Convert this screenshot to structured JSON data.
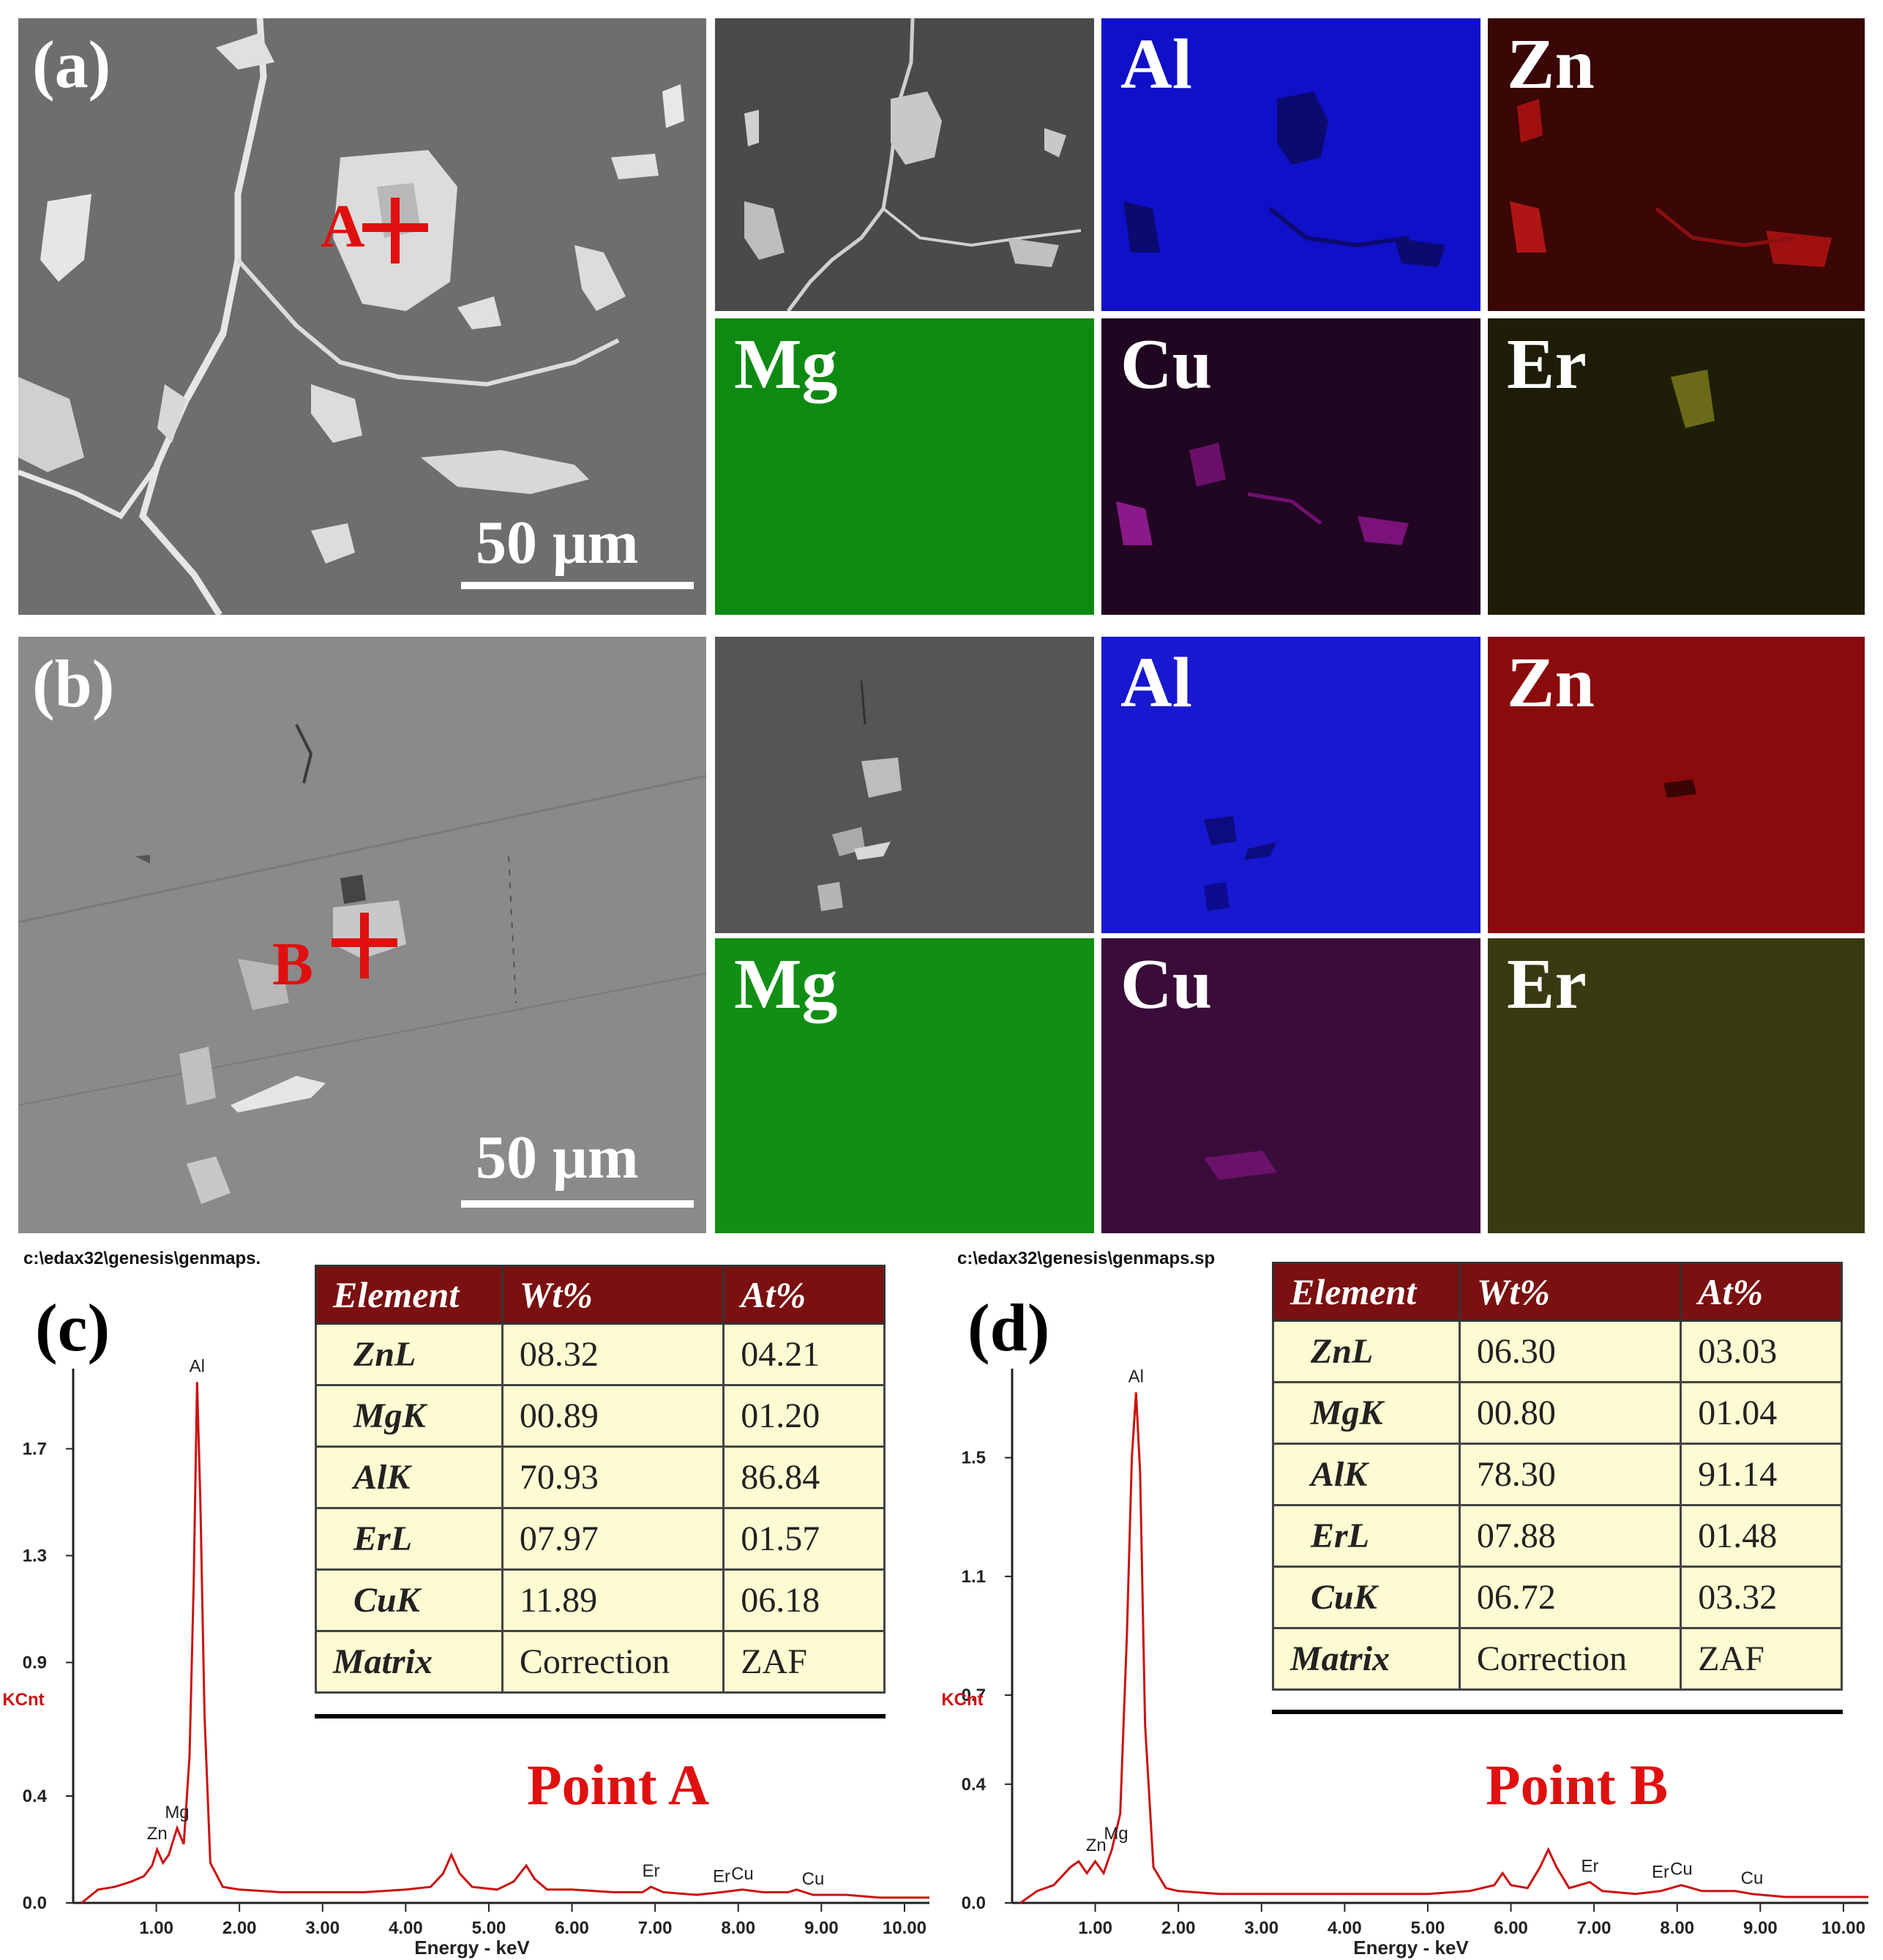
{
  "panels": {
    "a": {
      "label": "(a)",
      "scale_bar": "50 μm",
      "marker": "A",
      "maps": [
        "Al",
        "Zn",
        "Mg",
        "Cu",
        "Er"
      ]
    },
    "b": {
      "label": "(b)",
      "scale_bar": "50 μm",
      "marker": "B",
      "maps": [
        "Al",
        "Zn",
        "Mg",
        "Cu",
        "Er"
      ]
    },
    "c": {
      "label": "(c)",
      "path": "c:\\edax32\\genesis\\genmaps.",
      "point_title": "Point A",
      "table": {
        "headers": [
          "Element",
          "Wt%",
          "At%"
        ],
        "rows": [
          [
            "ZnL",
            "08.32",
            "04.21"
          ],
          [
            "MgK",
            "00.89",
            "01.20"
          ],
          [
            "AlK",
            "70.93",
            "86.84"
          ],
          [
            "ErL",
            "07.97",
            "01.57"
          ],
          [
            "CuK",
            "11.89",
            "06.18"
          ],
          [
            "Matrix",
            "Correction",
            "ZAF"
          ]
        ]
      }
    },
    "d": {
      "label": "(d)",
      "path": "c:\\edax32\\genesis\\genmaps.sp",
      "point_title": "Point B",
      "table": {
        "headers": [
          "Element",
          "Wt%",
          "At%"
        ],
        "rows": [
          [
            "ZnL",
            "06.30",
            "03.03"
          ],
          [
            "MgK",
            "00.80",
            "01.04"
          ],
          [
            "AlK",
            "78.30",
            "91.14"
          ],
          [
            "ErL",
            "07.88",
            "01.48"
          ],
          [
            "CuK",
            "06.72",
            "03.32"
          ],
          [
            "Matrix",
            "Correction",
            "ZAF"
          ]
        ]
      }
    }
  },
  "colors": {
    "Al": "#1010c8",
    "Zn": "#8a0b0b",
    "Mg": "#0e8a12",
    "Cu": "#6a0a6a",
    "Er": "#a8a010",
    "spectrum_line": "#cc1111",
    "marker": "#e01010",
    "table_header": "#7a1010",
    "table_body": "#fdfbd2"
  },
  "chart_data": [
    {
      "type": "line",
      "xlabel": "Energy - keV",
      "ylabel": "KCnt",
      "x_ticks": [
        "1.00",
        "2.00",
        "3.00",
        "4.00",
        "5.00",
        "6.00",
        "7.00",
        "8.00",
        "9.00",
        "10.00"
      ],
      "y_ticks": [
        "0.0",
        "0.4",
        "0.9",
        "1.3",
        "1.7"
      ],
      "xlim": [
        0,
        10.3
      ],
      "ylim": [
        0,
        2.0
      ],
      "peaks": [
        {
          "label": "Zn",
          "x": 1.01,
          "y": 0.2
        },
        {
          "label": "Mg",
          "x": 1.25,
          "y": 0.28
        },
        {
          "label": "Al",
          "x": 1.49,
          "y": 1.95
        },
        {
          "label": "Er",
          "x": 6.95,
          "y": 0.06
        },
        {
          "label": "Er",
          "x": 7.8,
          "y": 0.04
        },
        {
          "label": "Cu",
          "x": 8.05,
          "y": 0.05
        },
        {
          "label": "Cu",
          "x": 8.9,
          "y": 0.03
        }
      ],
      "series": [
        {
          "x": [
            0.1,
            0.3,
            0.5,
            0.7,
            0.85,
            0.95,
            1.01,
            1.08,
            1.15,
            1.25,
            1.33,
            1.4,
            1.45,
            1.49,
            1.53,
            1.58,
            1.65,
            1.8,
            2.0,
            2.5,
            3.0,
            3.5,
            4.0,
            4.3,
            4.45,
            4.55,
            4.65,
            4.8,
            5.1,
            5.3,
            5.45,
            5.55,
            5.7,
            6.0,
            6.5,
            6.85,
            6.95,
            7.1,
            7.5,
            7.8,
            8.05,
            8.3,
            8.6,
            8.7,
            8.9,
            9.3,
            9.7,
            10.3
          ],
          "y": [
            0.0,
            0.05,
            0.06,
            0.08,
            0.1,
            0.14,
            0.2,
            0.15,
            0.18,
            0.28,
            0.22,
            0.55,
            1.2,
            1.95,
            1.5,
            0.7,
            0.15,
            0.06,
            0.05,
            0.04,
            0.04,
            0.04,
            0.05,
            0.06,
            0.11,
            0.18,
            0.11,
            0.06,
            0.05,
            0.08,
            0.14,
            0.09,
            0.05,
            0.05,
            0.04,
            0.04,
            0.06,
            0.04,
            0.03,
            0.04,
            0.05,
            0.04,
            0.04,
            0.05,
            0.03,
            0.03,
            0.02,
            0.02
          ]
        }
      ]
    },
    {
      "type": "line",
      "xlabel": "Energy - keV",
      "ylabel": "KCnt",
      "x_ticks": [
        "1.00",
        "2.00",
        "3.00",
        "4.00",
        "5.00",
        "6.00",
        "7.00",
        "8.00",
        "9.00",
        "10.00"
      ],
      "y_ticks": [
        "0.0",
        "0.4",
        "0.7",
        "1.1",
        "1.5"
      ],
      "xlim": [
        0,
        10.3
      ],
      "ylim": [
        0,
        1.8
      ],
      "peaks": [
        {
          "label": "Zn",
          "x": 1.01,
          "y": 0.14
        },
        {
          "label": "Mg",
          "x": 1.25,
          "y": 0.18
        },
        {
          "label": "Al",
          "x": 1.49,
          "y": 1.72
        },
        {
          "label": "Er",
          "x": 6.95,
          "y": 0.07
        },
        {
          "label": "Er",
          "x": 7.8,
          "y": 0.05
        },
        {
          "label": "Cu",
          "x": 8.05,
          "y": 0.06
        },
        {
          "label": "Cu",
          "x": 8.9,
          "y": 0.03
        }
      ],
      "series": [
        {
          "x": [
            0.1,
            0.3,
            0.5,
            0.7,
            0.8,
            0.9,
            1.0,
            1.1,
            1.2,
            1.3,
            1.38,
            1.44,
            1.49,
            1.54,
            1.6,
            1.7,
            1.85,
            2.0,
            2.5,
            3.0,
            3.5,
            4.0,
            4.5,
            5.0,
            5.5,
            5.8,
            5.9,
            6.0,
            6.2,
            6.35,
            6.45,
            6.55,
            6.7,
            6.95,
            7.1,
            7.5,
            7.8,
            8.05,
            8.3,
            8.7,
            8.9,
            9.3,
            9.8,
            10.3
          ],
          "y": [
            0.0,
            0.04,
            0.06,
            0.12,
            0.14,
            0.1,
            0.14,
            0.1,
            0.18,
            0.3,
            0.9,
            1.5,
            1.72,
            1.45,
            0.6,
            0.12,
            0.05,
            0.04,
            0.03,
            0.03,
            0.03,
            0.03,
            0.03,
            0.03,
            0.04,
            0.06,
            0.1,
            0.06,
            0.05,
            0.12,
            0.18,
            0.12,
            0.05,
            0.07,
            0.04,
            0.03,
            0.04,
            0.06,
            0.04,
            0.04,
            0.03,
            0.02,
            0.02,
            0.02
          ]
        }
      ]
    }
  ]
}
